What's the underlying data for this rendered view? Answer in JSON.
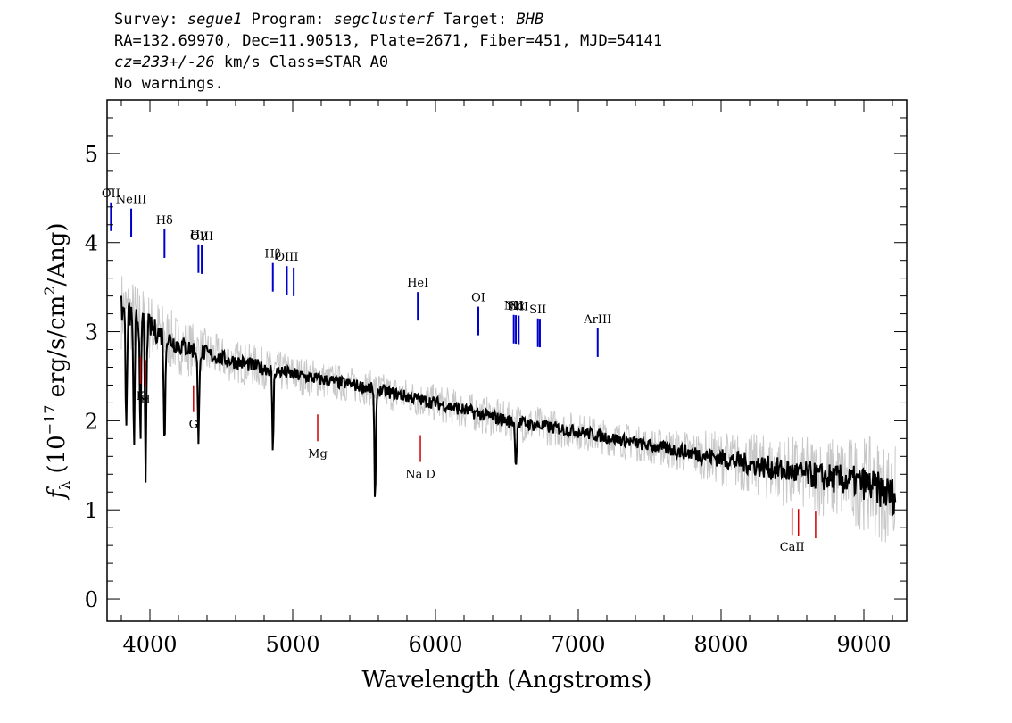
{
  "header": {
    "line1": {
      "survey_label": "Survey: ",
      "survey": "segue1",
      "program_label": " Program: ",
      "program": "segclusterf",
      "target_label": " Target: ",
      "target": "BHB"
    },
    "line2": "RA=132.69970, Dec=11.90513, Plate=2671, Fiber=451, MJD=54141",
    "line3": {
      "cz": "cz=233+/-26",
      "rest": " km/s Class=STAR A0"
    },
    "line4": "No warnings."
  },
  "chart_data": {
    "type": "line",
    "xlabel": "Wavelength (Angstroms)",
    "ylabel": "f_λ (10^-17 erg/s/cm^2/Ang)",
    "ylabel_parts": {
      "f": "f",
      "lambda": "λ",
      "open": " (10",
      "exp1": "−17",
      "mid": " erg/s/cm",
      "exp2": "2",
      "close": "/Ang)"
    },
    "xlim": [
      3700,
      9300
    ],
    "ylim": [
      -0.25,
      5.6
    ],
    "x_ticks": [
      4000,
      5000,
      6000,
      7000,
      8000,
      9000
    ],
    "x_tick_labels": [
      "4000",
      "5000",
      "6000",
      "7000",
      "8000",
      "9000"
    ],
    "y_ticks": [
      0,
      1,
      2,
      3,
      4,
      5
    ],
    "y_tick_labels": [
      "0",
      "1",
      "2",
      "3",
      "4",
      "5"
    ],
    "series": [
      {
        "role": "flux",
        "color": "#000000",
        "continuum_x": [
          3800,
          4000,
          4200,
          4500,
          5000,
          5500,
          6000,
          6500,
          7000,
          7500,
          8000,
          8500,
          9000,
          9220
        ],
        "continuum_y": [
          3.25,
          3.05,
          2.85,
          2.7,
          2.52,
          2.38,
          2.2,
          2.0,
          1.88,
          1.72,
          1.58,
          1.42,
          1.3,
          1.15
        ],
        "absorption_features": [
          {
            "x": 3835,
            "depth": 1.4
          },
          {
            "x": 3889,
            "depth": 1.6
          },
          {
            "x": 3934,
            "depth": 1.2
          },
          {
            "x": 3970,
            "depth": 1.8
          },
          {
            "x": 4102,
            "depth": 1.3
          },
          {
            "x": 4340,
            "depth": 1.1
          },
          {
            "x": 4861,
            "depth": 0.9
          },
          {
            "x": 5577,
            "depth": 1.35
          },
          {
            "x": 6563,
            "depth": 0.55
          }
        ]
      },
      {
        "role": "error-envelope",
        "color": "#c8c8c8",
        "noise_x": [
          3800,
          4500,
          5500,
          6500,
          7500,
          8200,
          8700,
          9220
        ],
        "noise_y": [
          0.45,
          0.25,
          0.2,
          0.22,
          0.2,
          0.35,
          0.45,
          0.6
        ]
      }
    ],
    "emission_lines": [
      {
        "label": "NeIII",
        "wave": 3869,
        "color": "#0000cc"
      },
      {
        "label": "OII",
        "wave": 3727,
        "color": "#0000cc"
      },
      {
        "label": "Hδ",
        "wave": 4102,
        "color": "#0000cc"
      },
      {
        "label": "Hγ",
        "wave": 4340,
        "color": "#0000cc"
      },
      {
        "label": "OIII",
        "wave": 4363,
        "color": "#0000cc"
      },
      {
        "label": "Hβ",
        "wave": 4861,
        "color": "#0000cc"
      },
      {
        "label": "OIII",
        "wave": 4959,
        "color": "#0000cc"
      },
      {
        "label": "",
        "wave": 5007,
        "color": "#0000cc"
      },
      {
        "label": "HeI",
        "wave": 5876,
        "color": "#0000cc"
      },
      {
        "label": "OI",
        "wave": 6300,
        "color": "#0000cc"
      },
      {
        "label": "NII",
        "wave": 6548,
        "color": "#0000cc"
      },
      {
        "label": "Hα",
        "wave": 6563,
        "color": "#0000cc"
      },
      {
        "label": "NII",
        "wave": 6583,
        "color": "#0000cc"
      },
      {
        "label": "SII",
        "wave": 6717,
        "color": "#0000cc"
      },
      {
        "label": "",
        "wave": 6731,
        "color": "#0000cc"
      },
      {
        "label": "ArIII",
        "wave": 7136,
        "color": "#0000cc"
      }
    ],
    "absorption_lines": [
      {
        "label": "K",
        "wave": 3934,
        "color": "#cc0000"
      },
      {
        "label": "H",
        "wave": 3969,
        "color": "#cc0000"
      },
      {
        "label": "G",
        "wave": 4305,
        "color": "#cc0000"
      },
      {
        "label": "Mg",
        "wave": 5175,
        "color": "#cc0000"
      },
      {
        "label": "Na D",
        "wave": 5894,
        "color": "#cc0000"
      },
      {
        "label": "CaII",
        "wave": 8498,
        "color": "#cc0000"
      },
      {
        "label": "",
        "wave": 8542,
        "color": "#cc0000"
      },
      {
        "label": "",
        "wave": 8662,
        "color": "#cc0000"
      }
    ]
  }
}
